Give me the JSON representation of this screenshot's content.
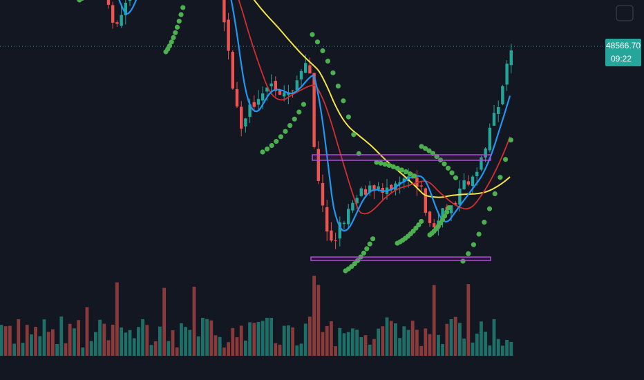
{
  "price_label": {
    "price": "48566.70",
    "countdown": "09:22"
  }
}
